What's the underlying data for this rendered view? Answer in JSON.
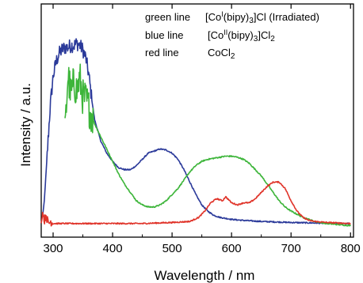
{
  "chart_data": {
    "type": "line",
    "xlabel": "Wavelength / nm",
    "ylabel": "Intensity / a.u.",
    "xlim": [
      280,
      805
    ],
    "ylim": [
      0,
      1
    ],
    "x_ticks": [
      300,
      400,
      500,
      600,
      700,
      800
    ],
    "x_tick_labels": [
      "300",
      "400",
      "500",
      "600",
      "700",
      "800"
    ],
    "y_ticks_visible": false,
    "legend_placement": "top-right",
    "legend_note_prefix": "green line",
    "legend": [
      {
        "label": "green line",
        "formula_pre": "[Co",
        "formula_ox": "I",
        "formula_mid": "(bipy)",
        "formula_sub": "3",
        "formula_post": "]Cl (Irradiated)"
      },
      {
        "label": "blue line",
        "formula_pre": "[Co",
        "formula_ox": "II",
        "formula_mid": "(bipy)",
        "formula_sub": "3",
        "formula_post": "]Cl2"
      },
      {
        "label": "red line",
        "formula_pre": "CoCl2",
        "formula_ox": "",
        "formula_mid": "",
        "formula_sub": "",
        "formula_post": ""
      }
    ],
    "series": [
      {
        "name": "",
        "color": "#2b3a9a",
        "noisy_range": [
          290,
          365
        ],
        "noise_amp": 0.035,
        "x": [
          282,
          285,
          290,
          295,
          300,
          305,
          310,
          315,
          320,
          325,
          330,
          335,
          340,
          345,
          350,
          355,
          360,
          365,
          370,
          380,
          390,
          400,
          410,
          420,
          430,
          440,
          450,
          460,
          470,
          480,
          490,
          500,
          510,
          520,
          530,
          540,
          550,
          560,
          570,
          580,
          600,
          620,
          650,
          700,
          750,
          800
        ],
        "y": [
          0.05,
          0.12,
          0.35,
          0.58,
          0.73,
          0.8,
          0.84,
          0.86,
          0.87,
          0.87,
          0.88,
          0.88,
          0.89,
          0.88,
          0.86,
          0.82,
          0.74,
          0.62,
          0.52,
          0.42,
          0.36,
          0.32,
          0.29,
          0.28,
          0.28,
          0.3,
          0.33,
          0.36,
          0.37,
          0.38,
          0.375,
          0.36,
          0.33,
          0.28,
          0.22,
          0.16,
          0.11,
          0.08,
          0.06,
          0.05,
          0.04,
          0.035,
          0.03,
          0.025,
          0.022,
          0.02
        ]
      },
      {
        "name": "",
        "color": "#3db53a",
        "noisy_range": [
          318,
          368
        ],
        "noise_amp": 0.09,
        "x": [
          320,
          325,
          330,
          335,
          340,
          345,
          350,
          355,
          360,
          365,
          370,
          380,
          390,
          400,
          410,
          420,
          430,
          440,
          450,
          460,
          470,
          480,
          490,
          500,
          510,
          520,
          530,
          540,
          550,
          560,
          570,
          580,
          590,
          600,
          610,
          620,
          630,
          640,
          650,
          660,
          670,
          680,
          690,
          700,
          710,
          720,
          730,
          740,
          750,
          760,
          780,
          800
        ],
        "y": [
          0.45,
          0.74,
          0.64,
          0.7,
          0.66,
          0.72,
          0.63,
          0.62,
          0.58,
          0.54,
          0.5,
          0.44,
          0.38,
          0.32,
          0.26,
          0.21,
          0.17,
          0.13,
          0.11,
          0.1,
          0.1,
          0.11,
          0.13,
          0.16,
          0.19,
          0.23,
          0.27,
          0.3,
          0.32,
          0.33,
          0.335,
          0.34,
          0.345,
          0.345,
          0.34,
          0.33,
          0.31,
          0.28,
          0.25,
          0.21,
          0.17,
          0.13,
          0.1,
          0.08,
          0.065,
          0.05,
          0.04,
          0.03,
          0.025,
          0.02,
          0.015,
          0.01
        ]
      },
      {
        "name": "",
        "color": "#e0342a",
        "noisy_range": [
          282,
          300
        ],
        "noise_amp": 0.02,
        "x": [
          280,
          283,
          285,
          288,
          292,
          296,
          300,
          320,
          350,
          400,
          450,
          500,
          530,
          545,
          555,
          565,
          575,
          585,
          590,
          600,
          610,
          620,
          630,
          640,
          650,
          660,
          670,
          680,
          690,
          700,
          710,
          720,
          730,
          740,
          760,
          800
        ],
        "y": [
          0.02,
          0.08,
          0.03,
          0.06,
          0.02,
          0.03,
          0.02,
          0.02,
          0.02,
          0.02,
          0.02,
          0.025,
          0.03,
          0.05,
          0.08,
          0.12,
          0.14,
          0.13,
          0.15,
          0.12,
          0.11,
          0.12,
          0.12,
          0.14,
          0.17,
          0.2,
          0.22,
          0.22,
          0.19,
          0.13,
          0.08,
          0.05,
          0.035,
          0.03,
          0.025,
          0.02
        ]
      }
    ]
  }
}
